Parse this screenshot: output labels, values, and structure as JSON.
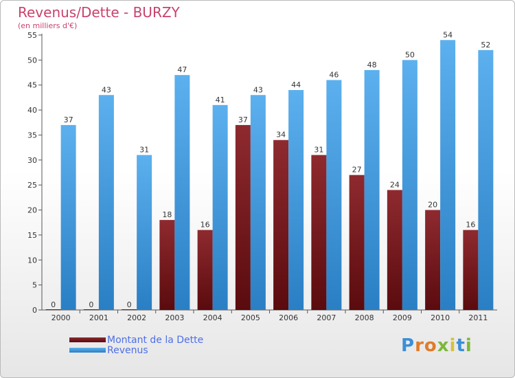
{
  "title": "Revenus/Dette - BURZY",
  "subtitle": "(en milliers d'€)",
  "logo": "Proxiti",
  "colors": {
    "title": "#c8426c",
    "debt": "#7a1e22",
    "revenue": "#4aa3e6",
    "legend_text": "#4d6fe8"
  },
  "chart_data": {
    "type": "bar",
    "categories": [
      "2000",
      "2001",
      "2002",
      "2003",
      "2004",
      "2005",
      "2006",
      "2007",
      "2008",
      "2009",
      "2010",
      "2011"
    ],
    "series": [
      {
        "name": "Montant de la Dette",
        "values": [
          0,
          0,
          0,
          18,
          16,
          37,
          34,
          31,
          27,
          24,
          20,
          16
        ],
        "color": "#7a1e22"
      },
      {
        "name": "Revenus",
        "values": [
          37,
          43,
          31,
          47,
          41,
          43,
          44,
          46,
          48,
          50,
          54,
          52
        ],
        "color": "#4aa3e6"
      }
    ],
    "ylim": [
      0,
      55
    ],
    "yticks": [
      0,
      5,
      10,
      15,
      20,
      25,
      30,
      35,
      40,
      45,
      50,
      55
    ],
    "grid": false,
    "legend_position": "bottom-left"
  }
}
